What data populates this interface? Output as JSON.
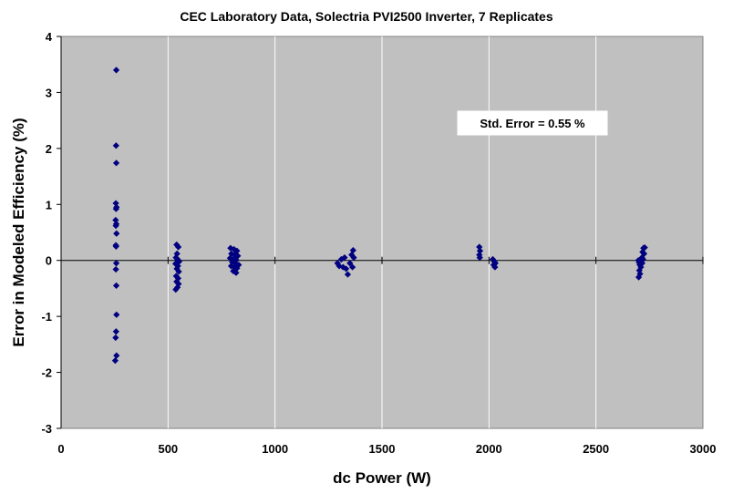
{
  "chart_data": {
    "type": "scatter",
    "title": "CEC Laboratory Data, Solectria PVI2500 Inverter, 7 Replicates",
    "xlabel": "dc Power (W)",
    "ylabel": "Error in Modeled Efficiency (%)",
    "xlim": [
      0,
      3000
    ],
    "ylim": [
      -3,
      4
    ],
    "xticks": [
      0,
      500,
      1000,
      1500,
      2000,
      2500,
      3000
    ],
    "yticks": [
      -3,
      -2,
      -1,
      0,
      1,
      2,
      3,
      4
    ],
    "grid": "vertical",
    "plot_background": "#c0c0c0",
    "marker_color": "#000080",
    "annotation": "Std. Error = 0.55 %",
    "points": [
      [
        258,
        3.4
      ],
      [
        257,
        2.05
      ],
      [
        258,
        1.74
      ],
      [
        256,
        1.02
      ],
      [
        259,
        0.95
      ],
      [
        257,
        0.92
      ],
      [
        255,
        0.72
      ],
      [
        258,
        0.65
      ],
      [
        256,
        0.62
      ],
      [
        259,
        0.48
      ],
      [
        256,
        0.27
      ],
      [
        257,
        0.25
      ],
      [
        258,
        -0.05
      ],
      [
        256,
        -0.16
      ],
      [
        258,
        -0.45
      ],
      [
        259,
        -0.97
      ],
      [
        257,
        -1.27
      ],
      [
        255,
        -1.38
      ],
      [
        259,
        -1.7
      ],
      [
        253,
        -1.79
      ],
      [
        540,
        0.28
      ],
      [
        548,
        0.24
      ],
      [
        542,
        0.12
      ],
      [
        537,
        0.05
      ],
      [
        545,
        0.02
      ],
      [
        552,
        -0.02
      ],
      [
        535,
        -0.06
      ],
      [
        546,
        -0.1
      ],
      [
        541,
        -0.15
      ],
      [
        550,
        -0.2
      ],
      [
        538,
        -0.28
      ],
      [
        547,
        -0.32
      ],
      [
        540,
        -0.38
      ],
      [
        549,
        -0.42
      ],
      [
        536,
        -0.52
      ],
      [
        544,
        -0.48
      ],
      [
        792,
        0.22
      ],
      [
        808,
        0.2
      ],
      [
        822,
        0.17
      ],
      [
        796,
        0.12
      ],
      [
        812,
        0.1
      ],
      [
        826,
        0.08
      ],
      [
        790,
        0.04
      ],
      [
        803,
        0.02
      ],
      [
        818,
        0.01
      ],
      [
        800,
        -0.03
      ],
      [
        815,
        -0.05
      ],
      [
        830,
        -0.08
      ],
      [
        795,
        -0.1
      ],
      [
        810,
        -0.12
      ],
      [
        822,
        -0.14
      ],
      [
        805,
        -0.19
      ],
      [
        818,
        -0.22
      ],
      [
        1292,
        -0.05
      ],
      [
        1300,
        -0.1
      ],
      [
        1310,
        0.02
      ],
      [
        1318,
        -0.12
      ],
      [
        1325,
        0.05
      ],
      [
        1332,
        -0.15
      ],
      [
        1340,
        -0.25
      ],
      [
        1350,
        -0.05
      ],
      [
        1358,
        0.1
      ],
      [
        1365,
        0.18
      ],
      [
        1368,
        0.05
      ],
      [
        1362,
        -0.12
      ],
      [
        1955,
        0.24
      ],
      [
        1958,
        0.17
      ],
      [
        1955,
        0.1
      ],
      [
        1957,
        0.05
      ],
      [
        2018,
        0.02
      ],
      [
        2025,
        -0.02
      ],
      [
        2030,
        -0.05
      ],
      [
        2022,
        -0.08
      ],
      [
        2028,
        -0.12
      ],
      [
        2698,
        0.0
      ],
      [
        2702,
        -0.04
      ],
      [
        2705,
        -0.08
      ],
      [
        2710,
        -0.12
      ],
      [
        2703,
        -0.18
      ],
      [
        2706,
        -0.24
      ],
      [
        2700,
        -0.3
      ],
      [
        2715,
        0.05
      ],
      [
        2718,
        0.15
      ],
      [
        2722,
        0.22
      ],
      [
        2728,
        0.23
      ],
      [
        2725,
        0.12
      ],
      [
        2720,
        0.02
      ],
      [
        2716,
        -0.05
      ]
    ]
  }
}
